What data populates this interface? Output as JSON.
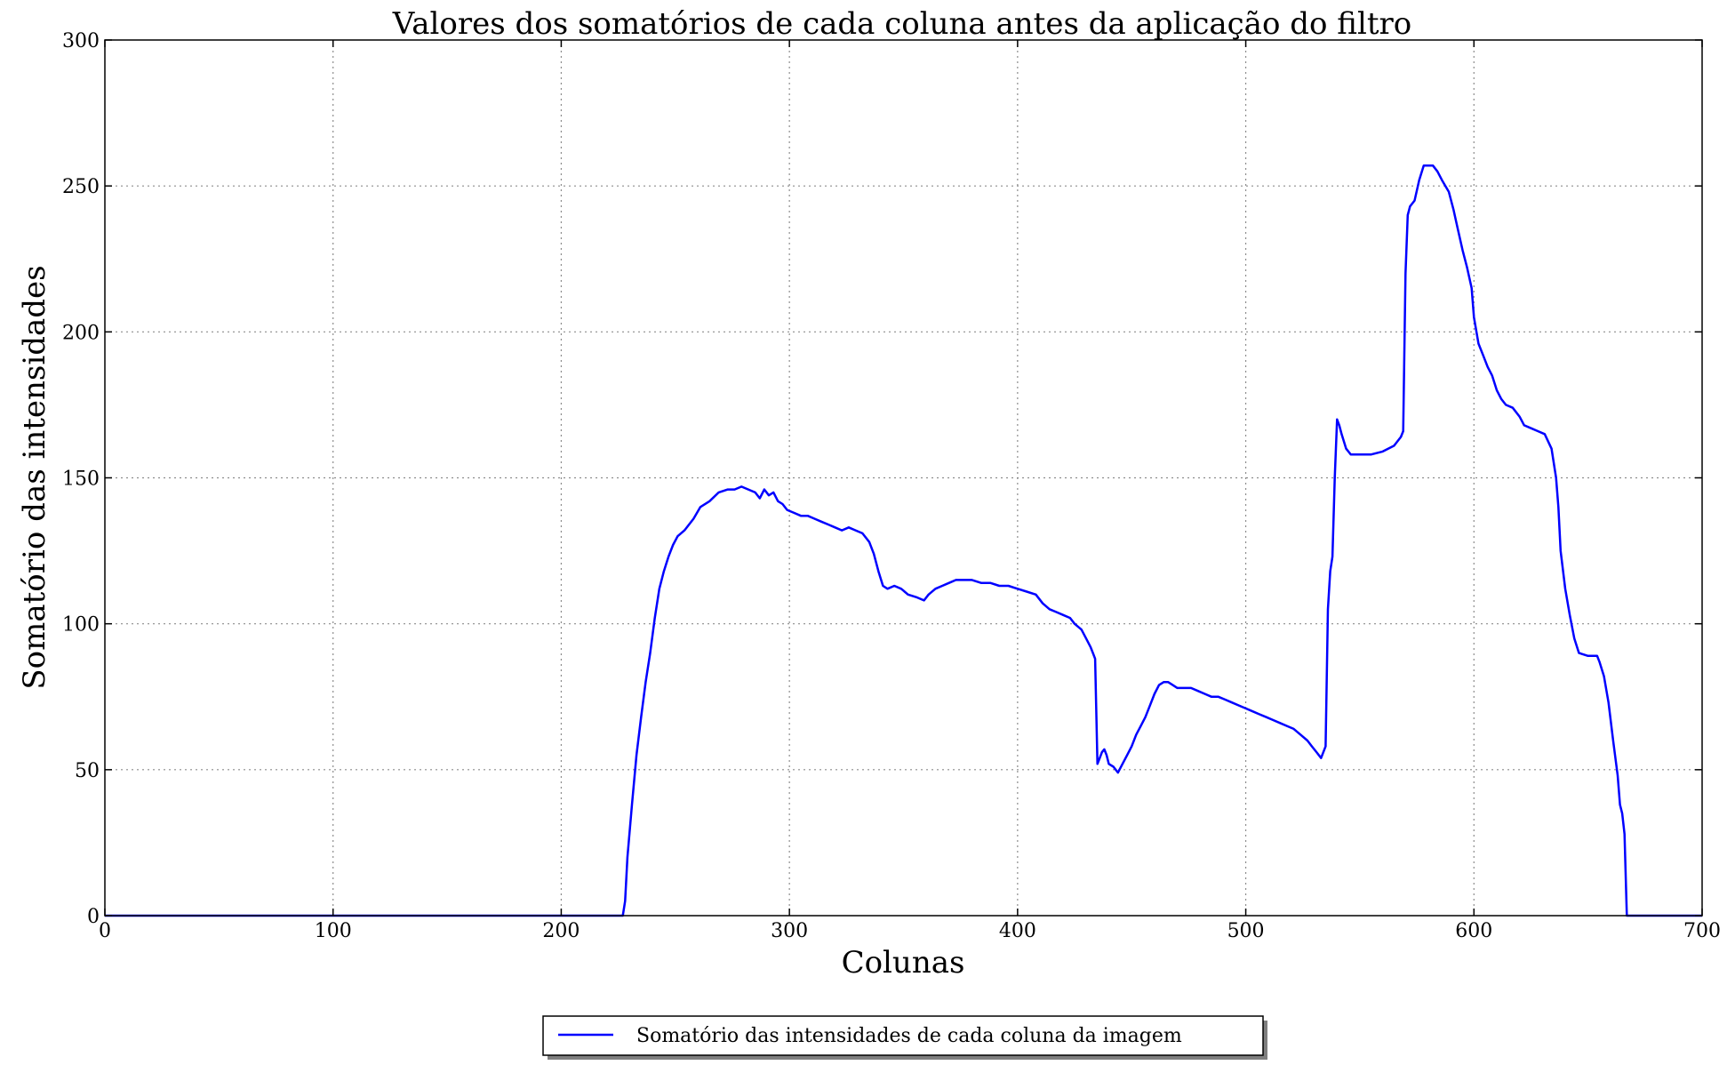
{
  "chart_data": {
    "type": "line",
    "title": "Valores dos somatórios de cada coluna antes da aplicação do filtro",
    "xlabel": "Colunas",
    "ylabel": "Somatório das intensidades",
    "xlim": [
      0,
      700
    ],
    "ylim": [
      0,
      300
    ],
    "xticks": [
      0,
      100,
      200,
      300,
      400,
      500,
      600,
      700
    ],
    "yticks": [
      0,
      50,
      100,
      150,
      200,
      250,
      300
    ],
    "grid": true,
    "legend_position": "bottom-center, below axes",
    "colors": {
      "series": "#0000ff",
      "grid": "#8c8c8c"
    },
    "series": [
      {
        "name": "Somatório das intensidades de cada coluna da imagem",
        "points": [
          [
            0,
            0
          ],
          [
            227,
            0
          ],
          [
            228,
            5
          ],
          [
            229,
            20
          ],
          [
            231,
            38
          ],
          [
            233,
            55
          ],
          [
            235,
            68
          ],
          [
            237,
            80
          ],
          [
            239,
            90
          ],
          [
            241,
            102
          ],
          [
            243,
            112
          ],
          [
            245,
            118
          ],
          [
            247,
            123
          ],
          [
            249,
            127
          ],
          [
            251,
            130
          ],
          [
            254,
            132
          ],
          [
            258,
            136
          ],
          [
            261,
            140
          ],
          [
            265,
            142
          ],
          [
            269,
            145
          ],
          [
            273,
            146
          ],
          [
            276,
            146
          ],
          [
            279,
            147
          ],
          [
            282,
            146
          ],
          [
            285,
            145
          ],
          [
            287,
            143
          ],
          [
            289,
            146
          ],
          [
            291,
            144
          ],
          [
            293,
            145
          ],
          [
            295,
            142
          ],
          [
            297,
            141
          ],
          [
            299,
            139
          ],
          [
            302,
            138
          ],
          [
            305,
            137
          ],
          [
            308,
            137
          ],
          [
            311,
            136
          ],
          [
            314,
            135
          ],
          [
            317,
            134
          ],
          [
            320,
            133
          ],
          [
            323,
            132
          ],
          [
            326,
            133
          ],
          [
            329,
            132
          ],
          [
            332,
            131
          ],
          [
            335,
            128
          ],
          [
            337,
            124
          ],
          [
            339,
            118
          ],
          [
            341,
            113
          ],
          [
            343,
            112
          ],
          [
            346,
            113
          ],
          [
            349,
            112
          ],
          [
            352,
            110
          ],
          [
            356,
            109
          ],
          [
            359,
            108
          ],
          [
            361,
            110
          ],
          [
            364,
            112
          ],
          [
            367,
            113
          ],
          [
            370,
            114
          ],
          [
            373,
            115
          ],
          [
            376,
            115
          ],
          [
            380,
            115
          ],
          [
            384,
            114
          ],
          [
            388,
            114
          ],
          [
            392,
            113
          ],
          [
            396,
            113
          ],
          [
            400,
            112
          ],
          [
            404,
            111
          ],
          [
            408,
            110
          ],
          [
            411,
            107
          ],
          [
            414,
            105
          ],
          [
            417,
            104
          ],
          [
            420,
            103
          ],
          [
            423,
            102
          ],
          [
            425,
            100
          ],
          [
            428,
            98
          ],
          [
            430,
            95
          ],
          [
            432,
            92
          ],
          [
            433,
            90
          ],
          [
            434,
            88
          ],
          [
            435,
            52
          ],
          [
            436,
            54
          ],
          [
            437,
            56
          ],
          [
            438,
            57
          ],
          [
            439,
            55
          ],
          [
            440,
            52
          ],
          [
            442,
            51
          ],
          [
            444,
            49
          ],
          [
            446,
            52
          ],
          [
            448,
            55
          ],
          [
            450,
            58
          ],
          [
            452,
            62
          ],
          [
            454,
            65
          ],
          [
            456,
            68
          ],
          [
            458,
            72
          ],
          [
            460,
            76
          ],
          [
            462,
            79
          ],
          [
            464,
            80
          ],
          [
            466,
            80
          ],
          [
            468,
            79
          ],
          [
            470,
            78
          ],
          [
            473,
            78
          ],
          [
            476,
            78
          ],
          [
            479,
            77
          ],
          [
            482,
            76
          ],
          [
            485,
            75
          ],
          [
            488,
            75
          ],
          [
            491,
            74
          ],
          [
            494,
            73
          ],
          [
            497,
            72
          ],
          [
            500,
            71
          ],
          [
            503,
            70
          ],
          [
            506,
            69
          ],
          [
            509,
            68
          ],
          [
            512,
            67
          ],
          [
            515,
            66
          ],
          [
            518,
            65
          ],
          [
            521,
            64
          ],
          [
            524,
            62
          ],
          [
            527,
            60
          ],
          [
            529,
            58
          ],
          [
            531,
            56
          ],
          [
            533,
            54
          ],
          [
            535,
            58
          ],
          [
            536,
            105
          ],
          [
            537,
            118
          ],
          [
            538,
            123
          ],
          [
            539,
            150
          ],
          [
            540,
            170
          ],
          [
            541,
            168
          ],
          [
            542,
            165
          ],
          [
            544,
            160
          ],
          [
            546,
            158
          ],
          [
            550,
            158
          ],
          [
            555,
            158
          ],
          [
            560,
            159
          ],
          [
            565,
            161
          ],
          [
            568,
            164
          ],
          [
            569,
            166
          ],
          [
            570,
            220
          ],
          [
            571,
            240
          ],
          [
            572,
            243
          ],
          [
            574,
            245
          ],
          [
            576,
            252
          ],
          [
            578,
            257
          ],
          [
            582,
            257
          ],
          [
            584,
            255
          ],
          [
            586,
            252
          ],
          [
            589,
            248
          ],
          [
            591,
            242
          ],
          [
            593,
            235
          ],
          [
            595,
            228
          ],
          [
            597,
            222
          ],
          [
            599,
            215
          ],
          [
            600,
            205
          ],
          [
            602,
            196
          ],
          [
            604,
            192
          ],
          [
            606,
            188
          ],
          [
            608,
            185
          ],
          [
            610,
            180
          ],
          [
            612,
            177
          ],
          [
            614,
            175
          ],
          [
            617,
            174
          ],
          [
            620,
            171
          ],
          [
            622,
            168
          ],
          [
            625,
            167
          ],
          [
            628,
            166
          ],
          [
            631,
            165
          ],
          [
            634,
            160
          ],
          [
            636,
            150
          ],
          [
            637,
            140
          ],
          [
            638,
            125
          ],
          [
            640,
            112
          ],
          [
            642,
            103
          ],
          [
            644,
            95
          ],
          [
            646,
            90
          ],
          [
            650,
            89
          ],
          [
            654,
            89
          ],
          [
            655,
            87
          ],
          [
            657,
            82
          ],
          [
            659,
            73
          ],
          [
            661,
            60
          ],
          [
            663,
            48
          ],
          [
            664,
            38
          ],
          [
            665,
            35
          ],
          [
            666,
            28
          ],
          [
            667,
            0
          ],
          [
            700,
            0
          ]
        ]
      }
    ]
  }
}
